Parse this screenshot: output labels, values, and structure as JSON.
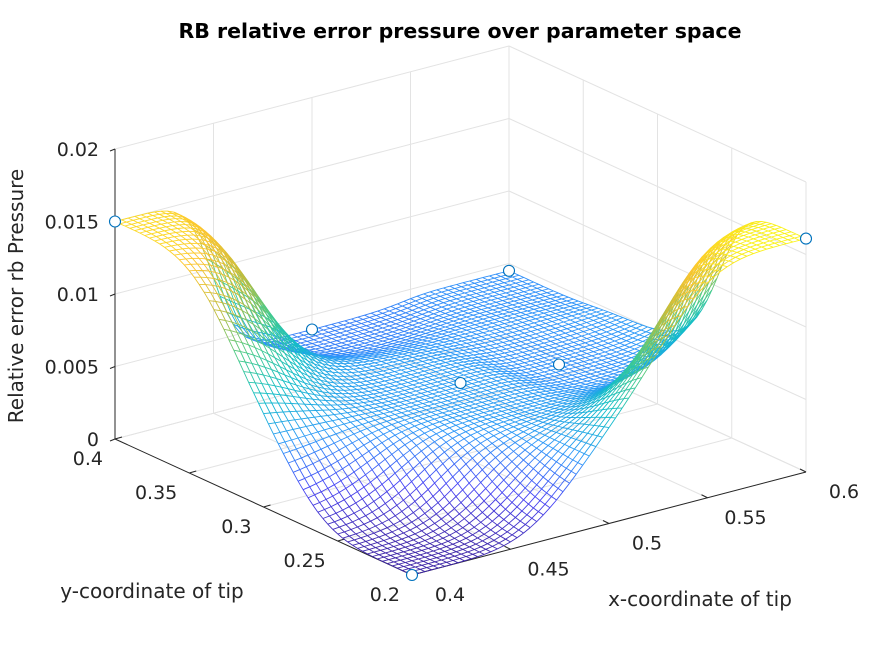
{
  "chart_data": {
    "type": "surface",
    "title": "RB relative error pressure over parameter space",
    "xlabel": "x-coordinate of tip",
    "ylabel": "y-coordinate of tip",
    "zlabel": "Relative error rb Pressure",
    "xlim": [
      0.4,
      0.6
    ],
    "ylim": [
      0.2,
      0.4
    ],
    "zlim": [
      0,
      0.02
    ],
    "x_ticks": [
      "0.4",
      "0.45",
      "0.5",
      "0.55",
      "0.6"
    ],
    "y_ticks": [
      "0.2",
      "0.25",
      "0.3",
      "0.35",
      "0.4"
    ],
    "z_ticks": [
      "0",
      "0.005",
      "0.01",
      "0.015",
      "0.02"
    ],
    "grid": true,
    "colormap": [
      "#3e26a8",
      "#4743f5",
      "#2d97f9",
      "#12bdc9",
      "#47cb89",
      "#bfbc3d",
      "#fdc52f",
      "#f9fb14"
    ],
    "marker_color": "#0072BD",
    "sample_points": [
      {
        "x": 0.4,
        "y": 0.4,
        "z": 0.015
      },
      {
        "x": 0.6,
        "y": 0.2,
        "z": 0.0161
      },
      {
        "x": 0.4,
        "y": 0.2,
        "z": 0.0
      },
      {
        "x": 0.6,
        "y": 0.4,
        "z": 0.0045
      },
      {
        "x": 0.5,
        "y": 0.4,
        "z": 0.004
      },
      {
        "x": 0.55,
        "y": 0.3,
        "z": 0.0045
      },
      {
        "x": 0.5,
        "y": 0.3,
        "z": 0.005
      }
    ]
  }
}
